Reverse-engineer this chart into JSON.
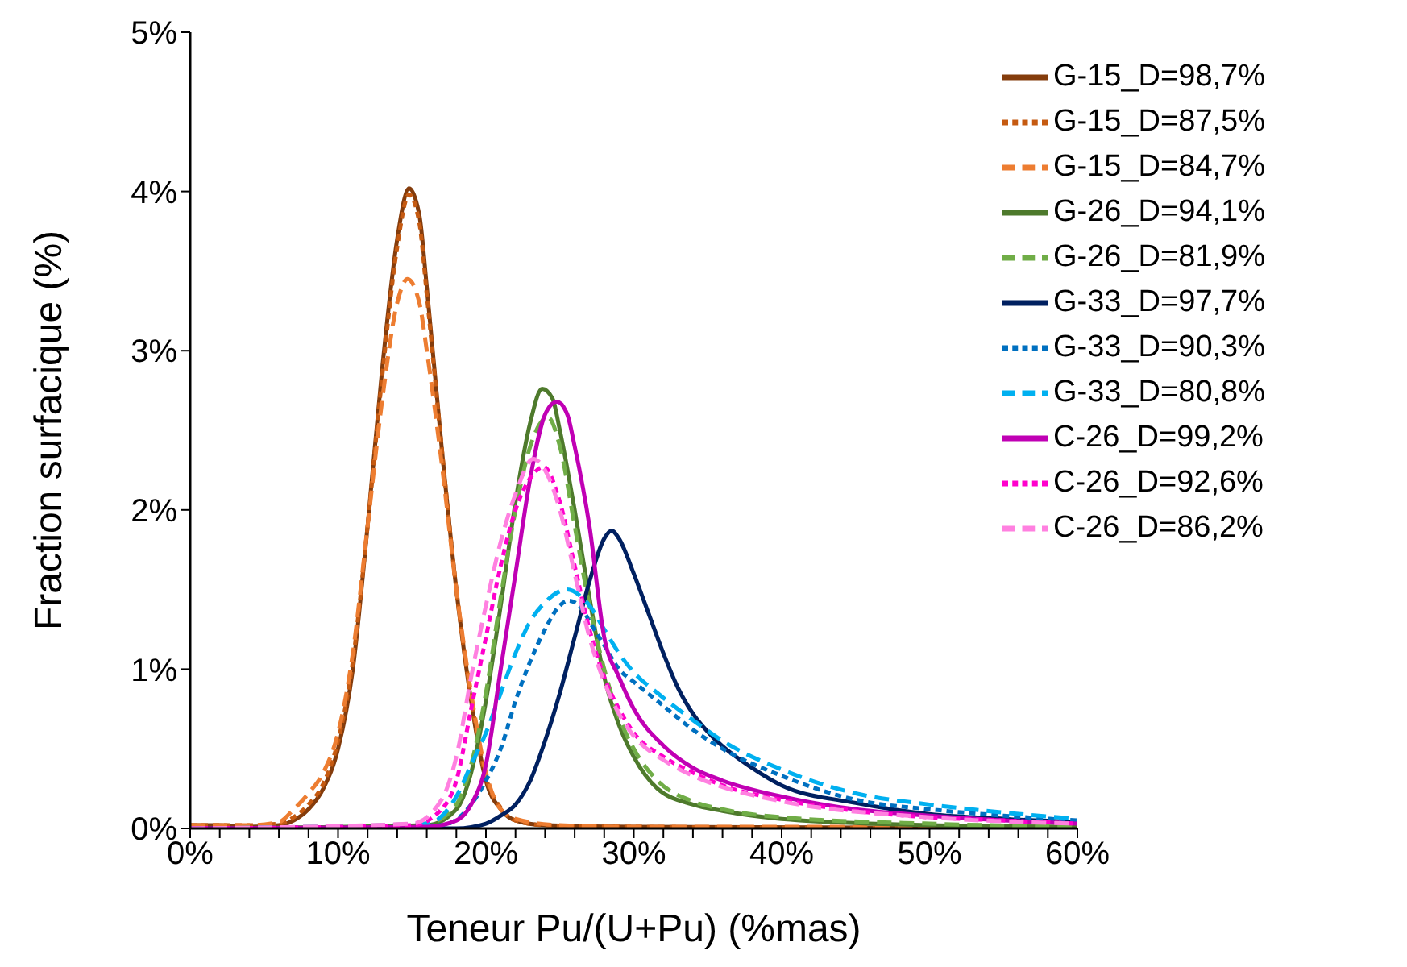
{
  "chart_data": {
    "type": "line",
    "xlabel": "Teneur Pu/(U+Pu) (%mas)",
    "ylabel": "Fraction surfacique (%)",
    "xlim": [
      0,
      60
    ],
    "ylim": [
      0,
      5
    ],
    "xticks": [
      {
        "value": 0,
        "label": "0%"
      },
      {
        "value": 2,
        "label": null
      },
      {
        "value": 4,
        "label": null
      },
      {
        "value": 6,
        "label": null
      },
      {
        "value": 8,
        "label": null
      },
      {
        "value": 10,
        "label": "10%"
      },
      {
        "value": 12,
        "label": null
      },
      {
        "value": 14,
        "label": null
      },
      {
        "value": 16,
        "label": null
      },
      {
        "value": 18,
        "label": null
      },
      {
        "value": 20,
        "label": "20%"
      },
      {
        "value": 22,
        "label": null
      },
      {
        "value": 24,
        "label": null
      },
      {
        "value": 26,
        "label": null
      },
      {
        "value": 28,
        "label": null
      },
      {
        "value": 30,
        "label": "30%"
      },
      {
        "value": 32,
        "label": null
      },
      {
        "value": 34,
        "label": null
      },
      {
        "value": 36,
        "label": null
      },
      {
        "value": 38,
        "label": null
      },
      {
        "value": 40,
        "label": "40%"
      },
      {
        "value": 42,
        "label": null
      },
      {
        "value": 44,
        "label": null
      },
      {
        "value": 46,
        "label": null
      },
      {
        "value": 48,
        "label": null
      },
      {
        "value": 50,
        "label": "50%"
      },
      {
        "value": 52,
        "label": null
      },
      {
        "value": 54,
        "label": null
      },
      {
        "value": 56,
        "label": null
      },
      {
        "value": 58,
        "label": null
      },
      {
        "value": 60,
        "label": "60%"
      }
    ],
    "yticks": [
      {
        "value": 0,
        "label": "0%"
      },
      {
        "value": 1,
        "label": "1%"
      },
      {
        "value": 2,
        "label": "2%"
      },
      {
        "value": 3,
        "label": "3%"
      },
      {
        "value": 4,
        "label": "4%"
      },
      {
        "value": 5,
        "label": "5%"
      }
    ],
    "grid": false,
    "legend": "top right",
    "marker": "none",
    "series": [
      {
        "name": "G-15_D=98,7%",
        "color": "#843c0c",
        "line_style": "solid",
        "x": [
          0,
          2,
          4,
          6,
          7,
          8,
          9,
          10,
          11,
          12,
          13,
          14,
          14.8,
          15.5,
          16,
          17,
          18,
          19,
          20,
          21,
          22,
          24,
          30,
          60
        ],
        "values": [
          0.02,
          0.02,
          0.01,
          0.02,
          0.05,
          0.12,
          0.25,
          0.5,
          1.0,
          1.9,
          2.9,
          3.7,
          4.02,
          3.85,
          3.4,
          2.4,
          1.5,
          0.8,
          0.3,
          0.12,
          0.05,
          0.02,
          0.01,
          0
        ]
      },
      {
        "name": "G-15_D=87,5%",
        "color": "#c55a11",
        "line_style": "dotted",
        "x": [
          0,
          2,
          4,
          6,
          7,
          8,
          9,
          10,
          11,
          12,
          13,
          14,
          14.8,
          15.5,
          16,
          17,
          18,
          19,
          20,
          21,
          22,
          24,
          30,
          60
        ],
        "values": [
          0.02,
          0.02,
          0.02,
          0.03,
          0.07,
          0.15,
          0.28,
          0.55,
          1.05,
          1.9,
          2.85,
          3.65,
          3.98,
          3.8,
          3.35,
          2.4,
          1.5,
          0.82,
          0.32,
          0.13,
          0.05,
          0.02,
          0.01,
          0
        ]
      },
      {
        "name": "G-15_D=84,7%",
        "color": "#ed7d31",
        "line_style": "dashed",
        "x": [
          0,
          4,
          6,
          7,
          8,
          9,
          10,
          11,
          12,
          13,
          14,
          14.7,
          15.5,
          16,
          17,
          18,
          19,
          20,
          21,
          22,
          25,
          30,
          60
        ],
        "values": [
          0.02,
          0.02,
          0.04,
          0.12,
          0.22,
          0.35,
          0.6,
          1.1,
          1.9,
          2.7,
          3.3,
          3.45,
          3.3,
          3.0,
          2.3,
          1.5,
          0.85,
          0.35,
          0.12,
          0.06,
          0.02,
          0.01,
          0.01
        ]
      },
      {
        "name": "G-26_D=94,1%",
        "color": "#4e7a2c",
        "line_style": "solid",
        "x": [
          0,
          16,
          18,
          19,
          20,
          21,
          22,
          23,
          23.8,
          24.5,
          25,
          26,
          27,
          28,
          29,
          30,
          31.6,
          34,
          36,
          40,
          50,
          60
        ],
        "values": [
          0,
          0.02,
          0.12,
          0.35,
          0.8,
          1.4,
          2.05,
          2.55,
          2.76,
          2.7,
          2.5,
          2.0,
          1.45,
          0.95,
          0.65,
          0.45,
          0.25,
          0.15,
          0.11,
          0.06,
          0.02,
          0.01
        ]
      },
      {
        "name": "G-26_D=81,9%",
        "color": "#70ad47",
        "line_style": "dashed",
        "x": [
          0,
          16,
          18,
          19,
          20,
          21,
          22,
          23,
          24.2,
          25,
          26,
          27,
          28,
          29,
          30,
          31.6,
          34,
          36,
          40,
          50,
          60
        ],
        "values": [
          0,
          0.03,
          0.15,
          0.4,
          0.85,
          1.45,
          2.0,
          2.4,
          2.58,
          2.4,
          1.9,
          1.4,
          1.0,
          0.7,
          0.5,
          0.3,
          0.17,
          0.12,
          0.07,
          0.03,
          0.01
        ]
      },
      {
        "name": "G-33_D=97,7%",
        "color": "#002060",
        "line_style": "solid",
        "x": [
          0,
          18,
          20,
          21,
          22,
          23,
          24,
          25,
          26,
          27,
          28,
          28.5,
          29,
          30,
          31,
          32,
          33,
          34,
          35.6,
          38,
          40,
          45,
          50,
          55,
          60
        ],
        "values": [
          0,
          0,
          0.03,
          0.08,
          0.15,
          0.3,
          0.55,
          0.85,
          1.2,
          1.55,
          1.82,
          1.87,
          1.82,
          1.6,
          1.35,
          1.1,
          0.88,
          0.72,
          0.55,
          0.38,
          0.27,
          0.16,
          0.09,
          0.06,
          0.04
        ]
      },
      {
        "name": "G-33_D=90,3%",
        "color": "#0070c0",
        "line_style": "dotted",
        "x": [
          0,
          17,
          19,
          20,
          21,
          22,
          23,
          24,
          25,
          25.6,
          26.5,
          27,
          28,
          29,
          30,
          31.6,
          34,
          36,
          40,
          45,
          50,
          55,
          60
        ],
        "values": [
          0,
          0.02,
          0.15,
          0.3,
          0.5,
          0.8,
          1.05,
          1.25,
          1.4,
          1.43,
          1.38,
          1.3,
          1.15,
          1.0,
          0.92,
          0.8,
          0.62,
          0.5,
          0.33,
          0.18,
          0.12,
          0.08,
          0.05
        ]
      },
      {
        "name": "G-33_D=80,8%",
        "color": "#00b0f0",
        "line_style": "dashed",
        "x": [
          0,
          16,
          18,
          19,
          20,
          21,
          22,
          23,
          24,
          25.5,
          26.5,
          27,
          28,
          29,
          30,
          31.6,
          34,
          36,
          40,
          45,
          50,
          55,
          60
        ],
        "values": [
          0,
          0.03,
          0.2,
          0.4,
          0.6,
          0.85,
          1.1,
          1.3,
          1.42,
          1.5,
          1.45,
          1.4,
          1.25,
          1.1,
          0.98,
          0.85,
          0.68,
          0.55,
          0.37,
          0.22,
          0.15,
          0.1,
          0.06
        ]
      },
      {
        "name": "C-26_D=99,2%",
        "color": "#c000b4",
        "line_style": "solid",
        "x": [
          0,
          16,
          18,
          19,
          20,
          21,
          22,
          23,
          24,
          24.8,
          25.5,
          26,
          27,
          28,
          29,
          30,
          32,
          34,
          36,
          40,
          45,
          50,
          55,
          60
        ],
        "values": [
          0,
          0.01,
          0.05,
          0.15,
          0.4,
          1.0,
          1.6,
          2.2,
          2.6,
          2.68,
          2.6,
          2.4,
          1.9,
          1.2,
          0.95,
          0.75,
          0.52,
          0.38,
          0.3,
          0.2,
          0.12,
          0.08,
          0.05,
          0.03
        ]
      },
      {
        "name": "C-26_D=92,6%",
        "color": "#ff00cc",
        "line_style": "dotted",
        "x": [
          0,
          15,
          17,
          18,
          19,
          20,
          21,
          22,
          23,
          23.9,
          25,
          26,
          27,
          28,
          29,
          30,
          32,
          34,
          36,
          40,
          45,
          50,
          55,
          60
        ],
        "values": [
          0,
          0.02,
          0.12,
          0.3,
          0.75,
          1.2,
          1.65,
          2.0,
          2.2,
          2.27,
          2.05,
          1.65,
          1.25,
          0.95,
          0.75,
          0.6,
          0.45,
          0.35,
          0.27,
          0.18,
          0.11,
          0.07,
          0.05,
          0.03
        ]
      },
      {
        "name": "C-26_D=86,2%",
        "color": "#ff80e0",
        "line_style": "dashed",
        "x": [
          0,
          15,
          17,
          18,
          19,
          20,
          21,
          22,
          23.2,
          24,
          25,
          26,
          27,
          28,
          29,
          30,
          32,
          34,
          36,
          40,
          50,
          60
        ],
        "values": [
          0,
          0.03,
          0.18,
          0.45,
          0.95,
          1.4,
          1.8,
          2.1,
          2.32,
          2.25,
          2.0,
          1.6,
          1.2,
          0.92,
          0.72,
          0.58,
          0.43,
          0.33,
          0.26,
          0.17,
          0.07,
          0.03
        ]
      }
    ]
  }
}
